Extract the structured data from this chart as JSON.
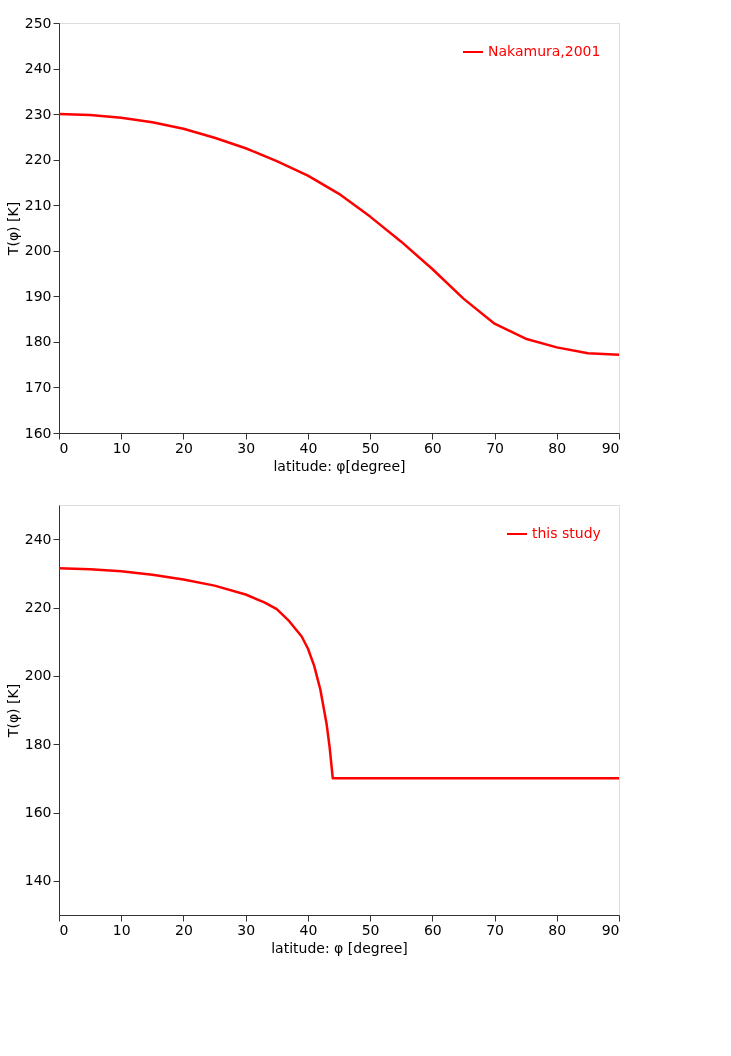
{
  "chart_data": [
    {
      "type": "line",
      "xlabel": "latitude: φ[degree]",
      "ylabel": "T(φ) [K]",
      "xlim": [
        0,
        90
      ],
      "xticks": [
        0,
        10,
        20,
        30,
        40,
        50,
        60,
        70,
        80,
        90
      ],
      "ylim": [
        160,
        250
      ],
      "yticks": [
        160,
        170,
        180,
        190,
        200,
        210,
        220,
        230,
        240,
        250
      ],
      "legend": "top right",
      "series": [
        {
          "name": "Nakamura,2001",
          "color": "#ff0000",
          "x": [
            0,
            5,
            10,
            15,
            20,
            25,
            30,
            35,
            40,
            45,
            50,
            55,
            60,
            65,
            70,
            75,
            80,
            85,
            90
          ],
          "values": [
            230,
            229.8,
            229.2,
            228.2,
            226.8,
            224.8,
            222.5,
            219.7,
            216.5,
            212.5,
            207.5,
            202,
            196,
            189.5,
            184,
            180.7,
            178.8,
            177.5,
            177.2
          ]
        }
      ]
    },
    {
      "type": "line",
      "xlabel": "latitude: φ [degree]",
      "ylabel": "T(φ) [K]",
      "xlim": [
        0,
        90
      ],
      "xticks": [
        0,
        10,
        20,
        30,
        40,
        50,
        60,
        70,
        80,
        90
      ],
      "ylim": [
        130,
        250
      ],
      "yticks": [
        140,
        160,
        180,
        200,
        220,
        240
      ],
      "legend": "top right",
      "series": [
        {
          "name": "this study",
          "color": "#ff0000",
          "x": [
            0,
            5,
            10,
            15,
            20,
            25,
            30,
            33,
            35,
            37,
            39,
            40,
            41,
            42,
            43,
            43.5,
            44,
            90
          ],
          "values": [
            231.5,
            231.2,
            230.6,
            229.6,
            228.2,
            226.4,
            223.8,
            221.5,
            219.5,
            216,
            211.5,
            208,
            203,
            196,
            186,
            179,
            170,
            170
          ]
        }
      ]
    }
  ]
}
